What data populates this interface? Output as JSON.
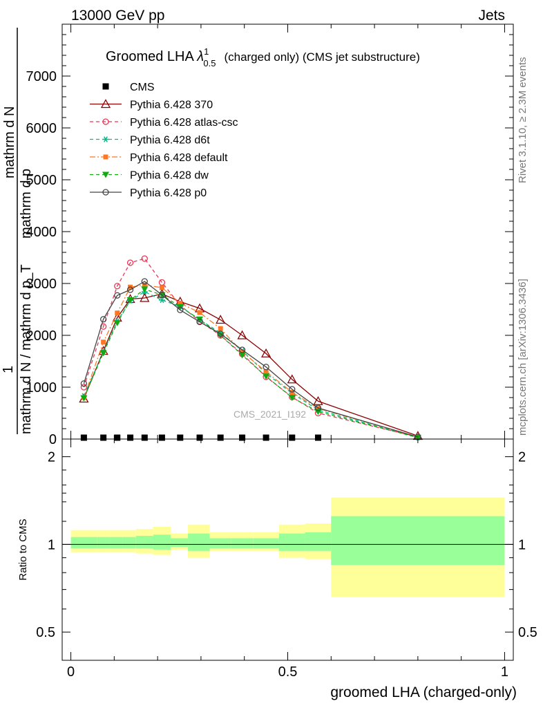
{
  "header": {
    "left": "13000 GeV pp",
    "right": "Jets"
  },
  "side_labels": {
    "rivet": "Rivet 3.1.10, ≥ 2.3M events",
    "mcplots": "mcplots.cern.ch [arXiv:1306.3436]"
  },
  "watermark": "CMS_2021_I192",
  "colors": {
    "band_outer": "#ffff99",
    "band_inner": "#99ff99",
    "cms": "#000000"
  },
  "chart_data": [
    {
      "type": "line",
      "title_main": "Groomed LHA ",
      "title_lambda": "λ",
      "title_sup": "1",
      "title_sub": "0.5",
      "title_rest": "(charged only) (CMS jet substructure)",
      "ylabel_top": "1",
      "ylabel_mid": "mathrm d N / mathrm d p_T",
      "ylabel_num": "mathrm d",
      "ylabel_num2": "N",
      "ylabel_num_line2": "mathrm d p_T mathrm d lambda",
      "ylabel_num_line3": "mathrm d p",
      "ylabel_num_line3b": "T",
      "ylabel_lambda": "mathrm d lambda",
      "ylim": [
        0,
        8000
      ],
      "xlim": [
        -0.02,
        1.02
      ],
      "y_ticks": [
        0,
        1000,
        2000,
        3000,
        4000,
        5000,
        6000,
        7000
      ],
      "y_tick_labels": [
        "0",
        "1000",
        "2000",
        "3000",
        "4000",
        "5000",
        "6000",
        "7000"
      ],
      "legend_placement": "top-left",
      "x": [
        0.03,
        0.075,
        0.107,
        0.137,
        0.17,
        0.21,
        0.252,
        0.297,
        0.345,
        0.395,
        0.45,
        0.51,
        0.57,
        0.8
      ],
      "series": [
        {
          "name": "CMS",
          "color": "#000000",
          "marker": "square",
          "line": "none",
          "x": [
            0.03,
            0.075,
            0.107,
            0.137,
            0.17,
            0.21,
            0.252,
            0.297,
            0.345,
            0.395,
            0.45,
            0.51,
            0.57
          ],
          "values": [
            0,
            0,
            0,
            0,
            0,
            0,
            0,
            0,
            0,
            0,
            0,
            0,
            0
          ]
        },
        {
          "name": "Pythia 6.428 370",
          "color": "#8b0000",
          "marker": "triangle-open",
          "line": "solid",
          "values": [
            780,
            1700,
            2340,
            2700,
            2720,
            2800,
            2650,
            2520,
            2300,
            2000,
            1650,
            1150,
            730,
            60
          ]
        },
        {
          "name": "Pythia 6.428 atlas-csc",
          "color": "#ee3355",
          "marker": "circle-open",
          "line": "dashed",
          "values": [
            1000,
            2170,
            2950,
            3400,
            3480,
            3020,
            2580,
            2270,
            2000,
            1640,
            1200,
            810,
            500,
            40
          ]
        },
        {
          "name": "Pythia 6.428 d6t",
          "color": "#00bb88",
          "marker": "star",
          "line": "dashed",
          "values": [
            830,
            1680,
            2270,
            2670,
            2840,
            2680,
            2560,
            2300,
            2050,
            1700,
            1270,
            880,
            560,
            30
          ]
        },
        {
          "name": "Pythia 6.428 default",
          "color": "#ff7722",
          "marker": "square-filled",
          "line": "dashdot",
          "values": [
            800,
            1870,
            2430,
            2930,
            2970,
            2920,
            2620,
            2440,
            2130,
            1680,
            1300,
            900,
            590,
            40
          ]
        },
        {
          "name": "Pythia 6.428 dw",
          "color": "#11aa11",
          "marker": "triangle-down",
          "line": "dashed",
          "values": [
            790,
            1660,
            2240,
            2680,
            2890,
            2780,
            2550,
            2310,
            2000,
            1620,
            1210,
            800,
            530,
            30
          ]
        },
        {
          "name": "Pythia 6.428 p0",
          "color": "#444444",
          "marker": "circle-open",
          "line": "solid",
          "values": [
            1070,
            2310,
            2770,
            2880,
            3040,
            2780,
            2490,
            2260,
            2030,
            1720,
            1390,
            960,
            600,
            40
          ]
        }
      ]
    },
    {
      "type": "area",
      "ylabel": "Ratio to CMS",
      "xlabel": "groomed LHA (charged-only)",
      "ylim": [
        0.4,
        2.3
      ],
      "y_log": true,
      "xlim": [
        -0.02,
        1.02
      ],
      "y_ticks": [
        0.5,
        1,
        2
      ],
      "y_tick_labels": [
        "0.5",
        "1",
        "2"
      ],
      "x_ticks": [
        0,
        0.5,
        1
      ],
      "x_tick_labels": [
        "0",
        "0.5",
        "1"
      ],
      "bins": [
        0.0,
        0.06,
        0.09,
        0.12,
        0.15,
        0.19,
        0.23,
        0.27,
        0.32,
        0.37,
        0.42,
        0.48,
        0.54,
        0.6,
        1.0
      ],
      "outer_low": [
        0.94,
        0.94,
        0.94,
        0.94,
        0.93,
        0.92,
        0.96,
        0.9,
        0.95,
        0.95,
        0.95,
        0.9,
        0.89,
        0.66
      ],
      "outer_high": [
        1.12,
        1.12,
        1.12,
        1.12,
        1.13,
        1.15,
        1.09,
        1.17,
        1.1,
        1.1,
        1.1,
        1.17,
        1.18,
        1.45
      ],
      "inner_low": [
        0.97,
        0.97,
        0.97,
        0.97,
        0.97,
        0.96,
        0.98,
        0.95,
        0.97,
        0.97,
        0.97,
        0.95,
        0.95,
        0.85
      ],
      "inner_high": [
        1.06,
        1.06,
        1.06,
        1.06,
        1.07,
        1.08,
        1.05,
        1.09,
        1.05,
        1.05,
        1.05,
        1.09,
        1.1,
        1.25
      ],
      "reference": 1
    }
  ]
}
